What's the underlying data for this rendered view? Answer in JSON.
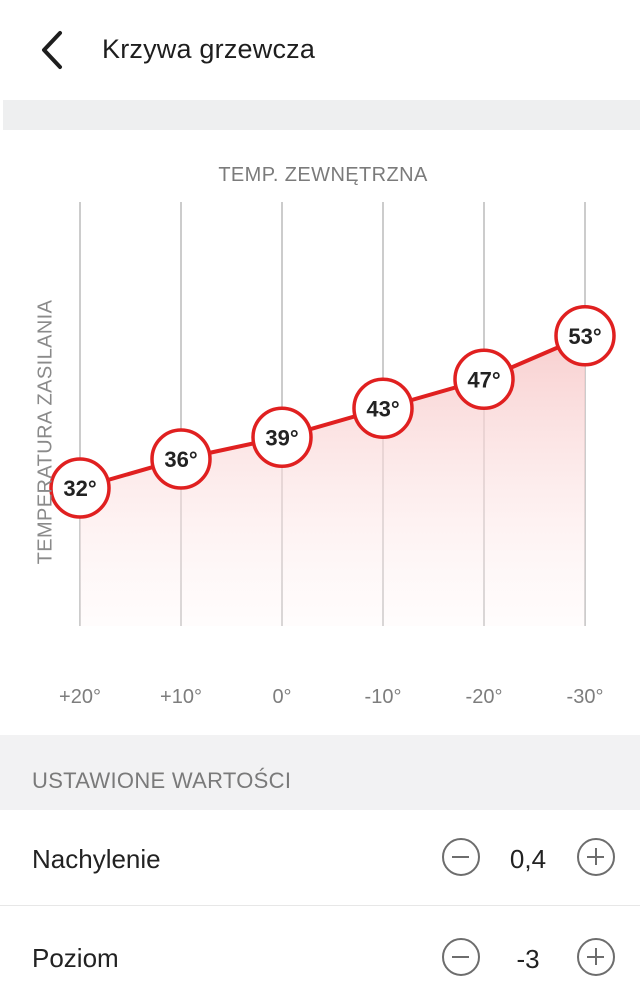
{
  "header": {
    "back_icon": "chevron-left-icon",
    "title": "Krzywa grzewcza"
  },
  "chart_data": {
    "type": "line",
    "xlabel": "TEMP. ZEWNĘTRZNA",
    "ylabel": "TEMPERATURA ZASILANIA",
    "x": [
      "+20°",
      "+10°",
      "0°",
      "-10°",
      "-20°",
      "-30°"
    ],
    "series": [
      {
        "values": [
          32,
          36,
          39,
          43,
          47,
          53
        ],
        "labels": [
          "32°",
          "36°",
          "39°",
          "43°",
          "47°",
          "53°"
        ]
      }
    ],
    "grid": "vertical",
    "colors": {
      "line": "#e02020",
      "marker_border": "#e02020",
      "marker_fill": "#ffffff",
      "grid": "#cccccc"
    }
  },
  "settings": {
    "section_title": "USTAWIONE WARTOŚCI",
    "rows": [
      {
        "label": "Nachylenie",
        "value": "0,4",
        "minus_icon": "minus-circle-icon",
        "plus_icon": "plus-circle-icon"
      },
      {
        "label": "Poziom",
        "value": "-3",
        "minus_icon": "minus-circle-icon",
        "plus_icon": "plus-circle-icon"
      }
    ]
  }
}
